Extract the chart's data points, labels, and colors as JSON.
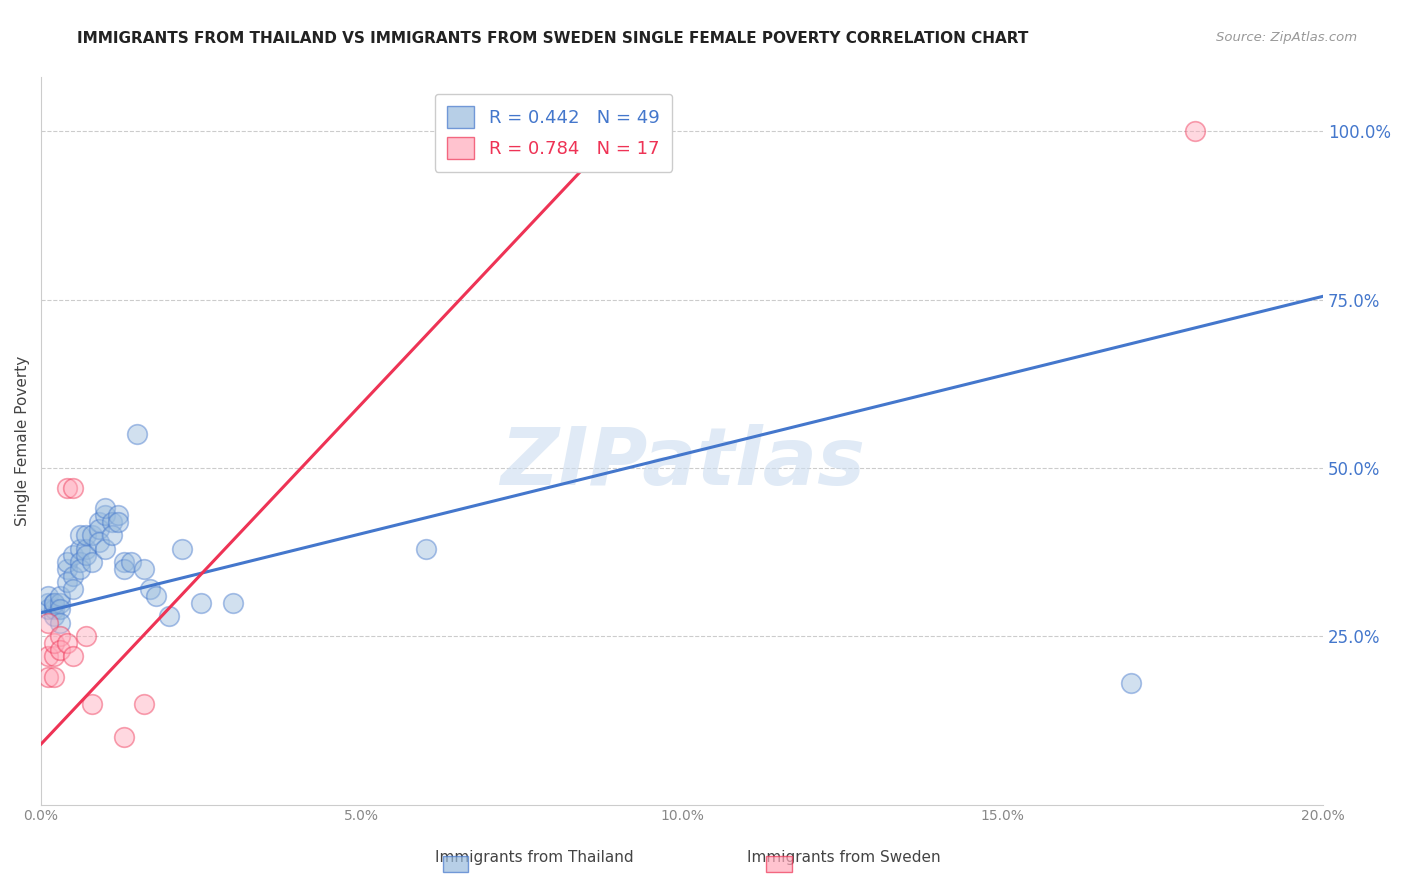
{
  "title": "IMMIGRANTS FROM THAILAND VS IMMIGRANTS FROM SWEDEN SINGLE FEMALE POVERTY CORRELATION CHART",
  "source": "Source: ZipAtlas.com",
  "ylabel": "Single Female Poverty",
  "right_ytick_labels": [
    "100.0%",
    "75.0%",
    "50.0%",
    "25.0%"
  ],
  "right_ytick_values": [
    1.0,
    0.75,
    0.5,
    0.25
  ],
  "xlim": [
    0,
    0.2
  ],
  "ylim": [
    0,
    1.08
  ],
  "xtick_labels": [
    "0.0%",
    "",
    "5.0%",
    "",
    "10.0%",
    "",
    "15.0%",
    "",
    "20.0%"
  ],
  "xtick_values": [
    0.0,
    0.025,
    0.05,
    0.075,
    0.1,
    0.125,
    0.15,
    0.175,
    0.2
  ],
  "legend_blue_text": "R = 0.442   N = 49",
  "legend_pink_text": "R = 0.784   N = 17",
  "blue_color": "#99BBDD",
  "pink_color": "#FFAABB",
  "trend_blue_color": "#4477CC",
  "trend_pink_color": "#EE3355",
  "watermark": "ZIPatlas",
  "thailand_x": [
    0.001,
    0.001,
    0.001,
    0.002,
    0.002,
    0.002,
    0.002,
    0.003,
    0.003,
    0.003,
    0.003,
    0.004,
    0.004,
    0.004,
    0.005,
    0.005,
    0.005,
    0.006,
    0.006,
    0.006,
    0.006,
    0.007,
    0.007,
    0.007,
    0.008,
    0.008,
    0.009,
    0.009,
    0.009,
    0.01,
    0.01,
    0.01,
    0.011,
    0.011,
    0.012,
    0.012,
    0.013,
    0.013,
    0.014,
    0.015,
    0.016,
    0.017,
    0.018,
    0.02,
    0.022,
    0.025,
    0.03,
    0.06,
    0.17
  ],
  "thailand_y": [
    0.3,
    0.29,
    0.31,
    0.29,
    0.3,
    0.28,
    0.3,
    0.3,
    0.31,
    0.29,
    0.27,
    0.35,
    0.36,
    0.33,
    0.34,
    0.32,
    0.37,
    0.38,
    0.36,
    0.35,
    0.4,
    0.38,
    0.37,
    0.4,
    0.36,
    0.4,
    0.42,
    0.41,
    0.39,
    0.43,
    0.44,
    0.38,
    0.42,
    0.4,
    0.43,
    0.42,
    0.36,
    0.35,
    0.36,
    0.55,
    0.35,
    0.32,
    0.31,
    0.28,
    0.38,
    0.3,
    0.3,
    0.38,
    0.18
  ],
  "sweden_x": [
    0.001,
    0.001,
    0.001,
    0.002,
    0.002,
    0.002,
    0.003,
    0.003,
    0.004,
    0.004,
    0.005,
    0.005,
    0.007,
    0.008,
    0.013,
    0.016,
    0.18
  ],
  "sweden_y": [
    0.27,
    0.22,
    0.19,
    0.22,
    0.19,
    0.24,
    0.25,
    0.23,
    0.24,
    0.47,
    0.22,
    0.47,
    0.25,
    0.15,
    0.1,
    0.15,
    1.0
  ],
  "blue_trend_x": [
    0.0,
    0.2
  ],
  "blue_trend_y": [
    0.285,
    0.755
  ],
  "pink_trend_x": [
    0.0,
    0.095
  ],
  "pink_trend_y": [
    0.09,
    1.05
  ]
}
